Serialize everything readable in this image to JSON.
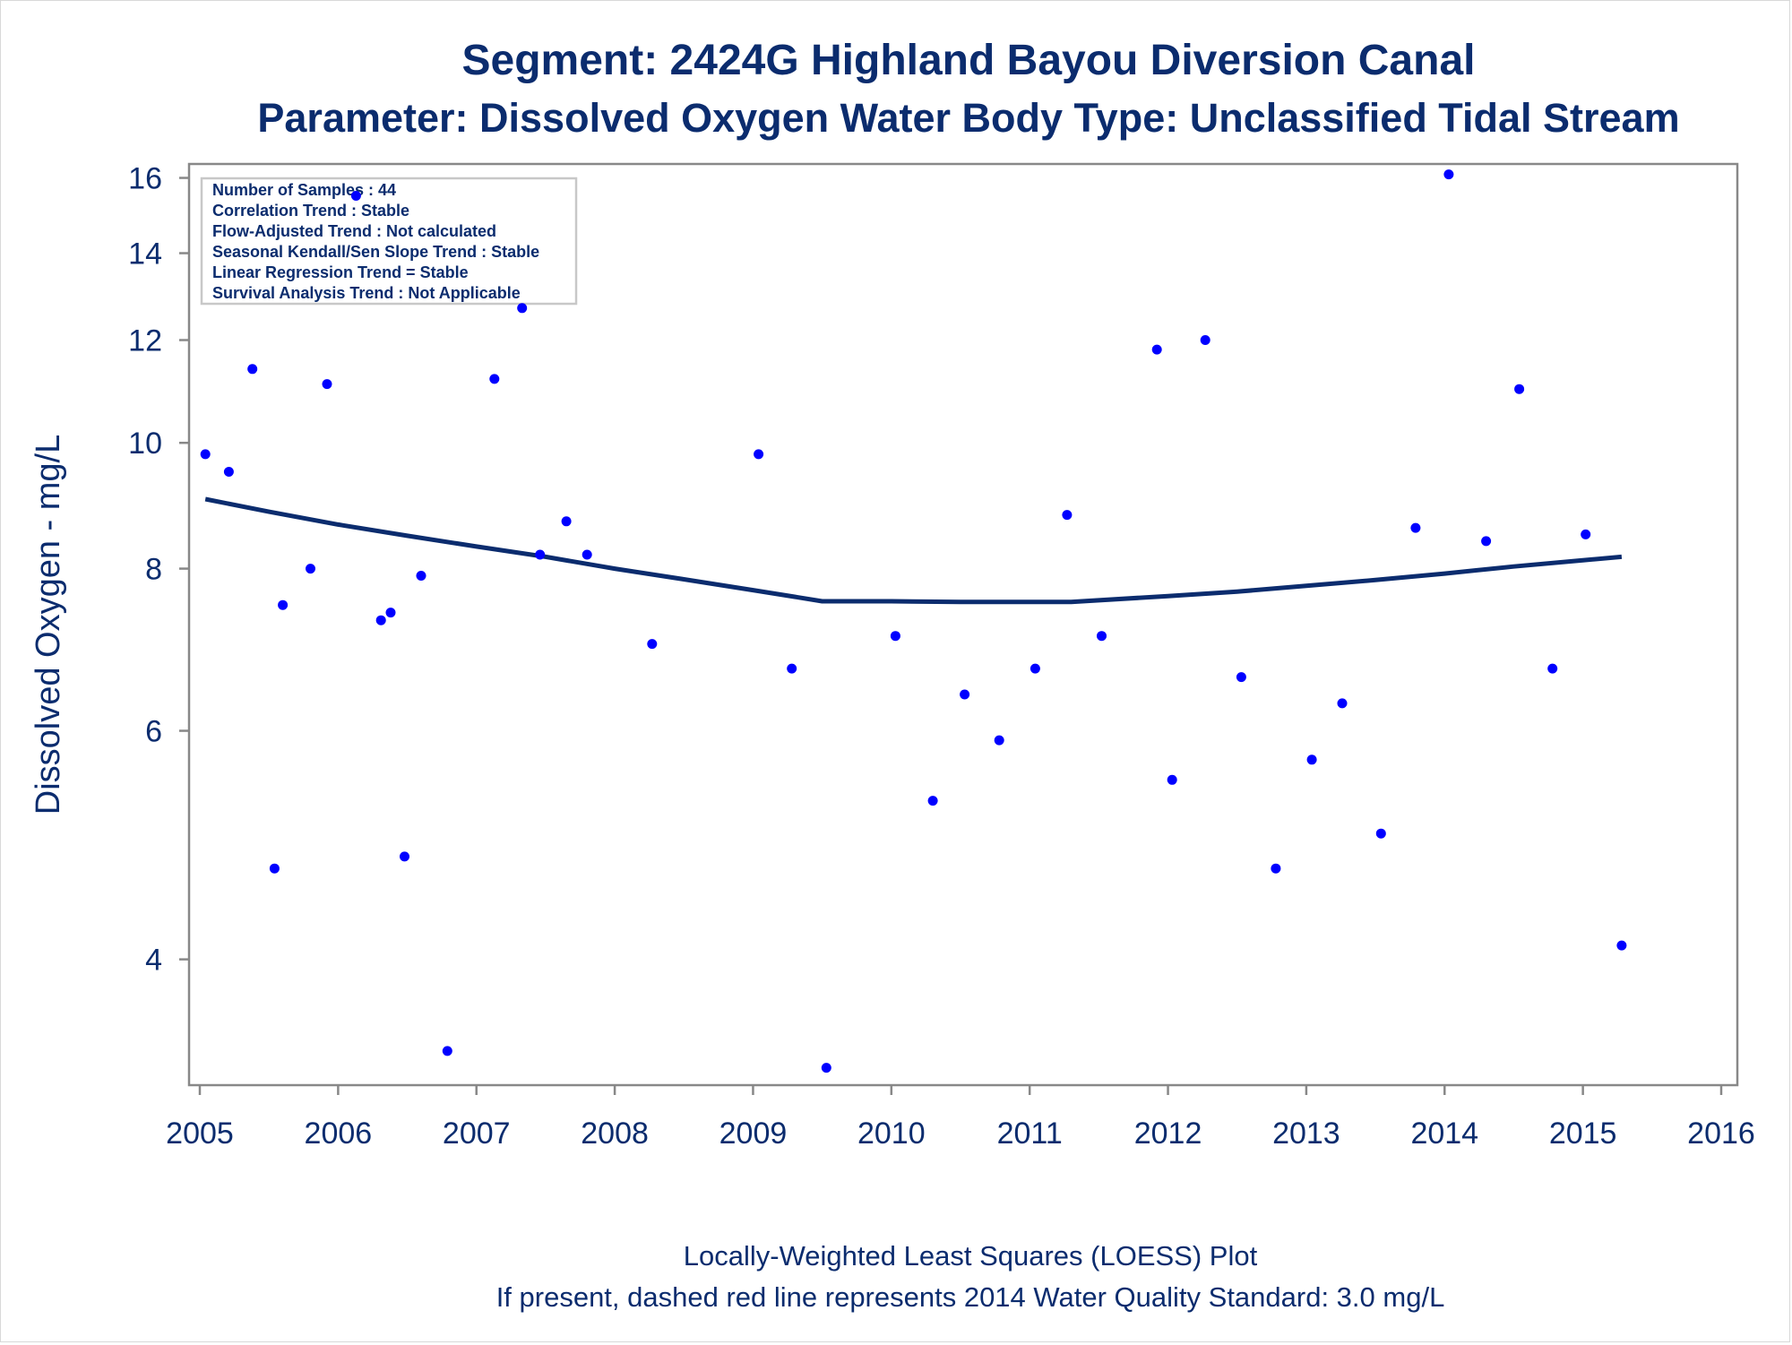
{
  "chart_data": {
    "type": "scatter",
    "title": "Segment: 2424G  Highland Bayou Diversion Canal",
    "subtitle": "Parameter: Dissolved Oxygen   Water Body Type: Unclassified Tidal Stream",
    "ylabel": "Dissolved Oxygen - mg/L",
    "xlabel": "",
    "footnotes": [
      "Locally-Weighted Least Squares (LOESS) Plot",
      "If present, dashed red line represents 2014 Water Quality Standard: 3.0 mg/L"
    ],
    "x_scale": "time (years)",
    "y_scale": "log",
    "xlim": [
      2005.0,
      2016.0
    ],
    "ylim": [
      3.2,
      16.4
    ],
    "x_ticks": [
      "2005",
      "2006",
      "2007",
      "2008",
      "2009",
      "2010",
      "2011",
      "2012",
      "2013",
      "2014",
      "2015",
      "2016"
    ],
    "y_ticks": [
      "4",
      "6",
      "8",
      "10",
      "12",
      "14",
      "16"
    ],
    "grid": false,
    "stats_box": [
      "Number of Samples : 44",
      "Correlation Trend : Stable",
      "Flow-Adjusted Trend : Not calculated",
      "Seasonal Kendall/Sen Slope Trend : Stable",
      "Linear Regression Trend = Stable",
      "Survival Analysis Trend : Not Applicable"
    ],
    "colors": {
      "points": "#0000ff",
      "loess": "#0b2c6e",
      "text": "#0b2c6e",
      "axis": "#888888"
    },
    "points": [
      {
        "x": 2005.04,
        "y": 9.8
      },
      {
        "x": 2005.21,
        "y": 9.5
      },
      {
        "x": 2005.38,
        "y": 11.4
      },
      {
        "x": 2005.54,
        "y": 4.7
      },
      {
        "x": 2005.6,
        "y": 7.5
      },
      {
        "x": 2005.8,
        "y": 8.0
      },
      {
        "x": 2005.92,
        "y": 11.1
      },
      {
        "x": 2006.13,
        "y": 15.5
      },
      {
        "x": 2006.31,
        "y": 7.3
      },
      {
        "x": 2006.38,
        "y": 7.4
      },
      {
        "x": 2006.48,
        "y": 4.8
      },
      {
        "x": 2006.6,
        "y": 7.9
      },
      {
        "x": 2006.79,
        "y": 3.4
      },
      {
        "x": 2007.13,
        "y": 11.2
      },
      {
        "x": 2007.33,
        "y": 12.7
      },
      {
        "x": 2007.46,
        "y": 8.2
      },
      {
        "x": 2007.65,
        "y": 8.7
      },
      {
        "x": 2007.8,
        "y": 8.2
      },
      {
        "x": 2008.27,
        "y": 7.0
      },
      {
        "x": 2009.04,
        "y": 9.8
      },
      {
        "x": 2009.28,
        "y": 6.7
      },
      {
        "x": 2009.53,
        "y": 3.3
      },
      {
        "x": 2010.03,
        "y": 7.1
      },
      {
        "x": 2010.3,
        "y": 5.3
      },
      {
        "x": 2010.53,
        "y": 6.4
      },
      {
        "x": 2010.78,
        "y": 5.9
      },
      {
        "x": 2011.04,
        "y": 6.7
      },
      {
        "x": 2011.27,
        "y": 8.8
      },
      {
        "x": 2011.52,
        "y": 7.1
      },
      {
        "x": 2011.92,
        "y": 11.8
      },
      {
        "x": 2012.03,
        "y": 5.5
      },
      {
        "x": 2012.27,
        "y": 12.0
      },
      {
        "x": 2012.53,
        "y": 6.6
      },
      {
        "x": 2012.78,
        "y": 4.7
      },
      {
        "x": 2013.04,
        "y": 5.7
      },
      {
        "x": 2013.26,
        "y": 6.3
      },
      {
        "x": 2013.54,
        "y": 5.0
      },
      {
        "x": 2013.79,
        "y": 8.6
      },
      {
        "x": 2014.03,
        "y": 16.1
      },
      {
        "x": 2014.3,
        "y": 8.4
      },
      {
        "x": 2014.54,
        "y": 11.0
      },
      {
        "x": 2014.78,
        "y": 6.7
      },
      {
        "x": 2015.02,
        "y": 8.5
      },
      {
        "x": 2015.28,
        "y": 4.1
      }
    ],
    "loess": [
      {
        "x": 2005.04,
        "y": 9.05
      },
      {
        "x": 2005.5,
        "y": 8.85
      },
      {
        "x": 2006.0,
        "y": 8.65
      },
      {
        "x": 2006.5,
        "y": 8.48
      },
      {
        "x": 2007.0,
        "y": 8.32
      },
      {
        "x": 2007.5,
        "y": 8.17
      },
      {
        "x": 2008.0,
        "y": 8.0
      },
      {
        "x": 2008.5,
        "y": 7.85
      },
      {
        "x": 2009.0,
        "y": 7.7
      },
      {
        "x": 2009.3,
        "y": 7.61
      },
      {
        "x": 2009.5,
        "y": 7.55
      },
      {
        "x": 2010.0,
        "y": 7.55
      },
      {
        "x": 2010.5,
        "y": 7.54
      },
      {
        "x": 2011.0,
        "y": 7.54
      },
      {
        "x": 2011.3,
        "y": 7.54
      },
      {
        "x": 2012.0,
        "y": 7.62
      },
      {
        "x": 2012.5,
        "y": 7.68
      },
      {
        "x": 2013.0,
        "y": 7.76
      },
      {
        "x": 2013.5,
        "y": 7.84
      },
      {
        "x": 2014.0,
        "y": 7.93
      },
      {
        "x": 2014.5,
        "y": 8.03
      },
      {
        "x": 2015.0,
        "y": 8.12
      },
      {
        "x": 2015.28,
        "y": 8.17
      }
    ]
  }
}
